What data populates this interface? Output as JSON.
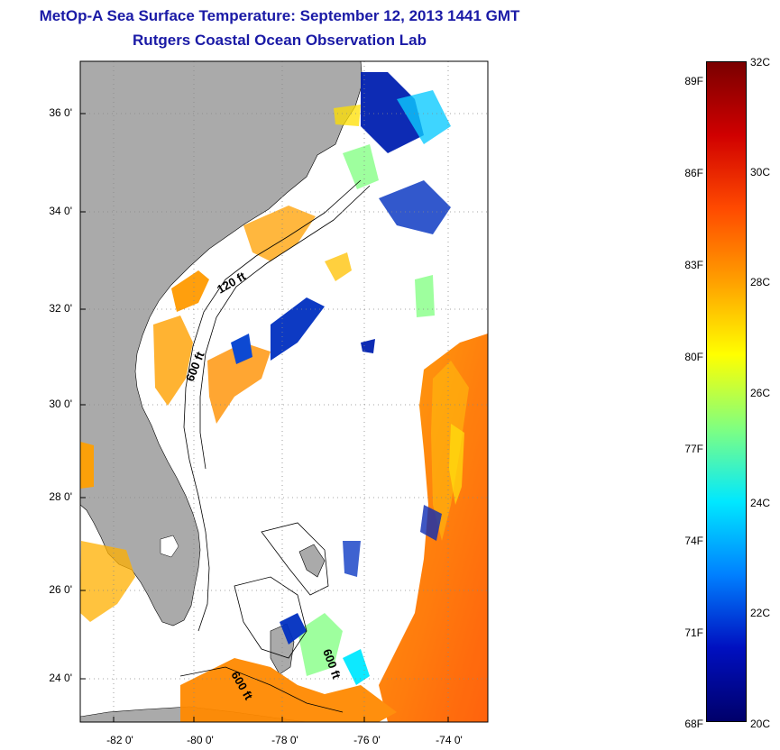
{
  "title": {
    "line1": "MetOp-A Sea Surface Temperature:  September 12, 2013 1441 GMT",
    "line2": "Rutgers Coastal Ocean Observation Lab"
  },
  "map": {
    "lat_ticks": [
      "36 0'",
      "34 0'",
      "32 0'",
      "30 0'",
      "28 0'",
      "26 0'",
      "24 0'"
    ],
    "lon_ticks": [
      "-82 0'",
      "-80 0'",
      "-78 0'",
      "-76 0'",
      "-74 0'"
    ],
    "contours": [
      "120 ft",
      "600 ft",
      "600 ft",
      "600 ft"
    ],
    "land_color": "#aaaaaa",
    "ocean_no_data_color": "#ffffff"
  },
  "colorbar": {
    "fahrenheit_labels": [
      "89F",
      "86F",
      "83F",
      "80F",
      "77F",
      "74F",
      "71F",
      "68F"
    ],
    "celsius_labels": [
      "32C",
      "30C",
      "28C",
      "26C",
      "24C",
      "22C",
      "20C"
    ],
    "colors": [
      "#7a0000",
      "#d00000",
      "#ff4a00",
      "#ffa000",
      "#ffff00",
      "#80ff80",
      "#00e8ff",
      "#0080ff",
      "#0010c0",
      "#00006a"
    ]
  }
}
